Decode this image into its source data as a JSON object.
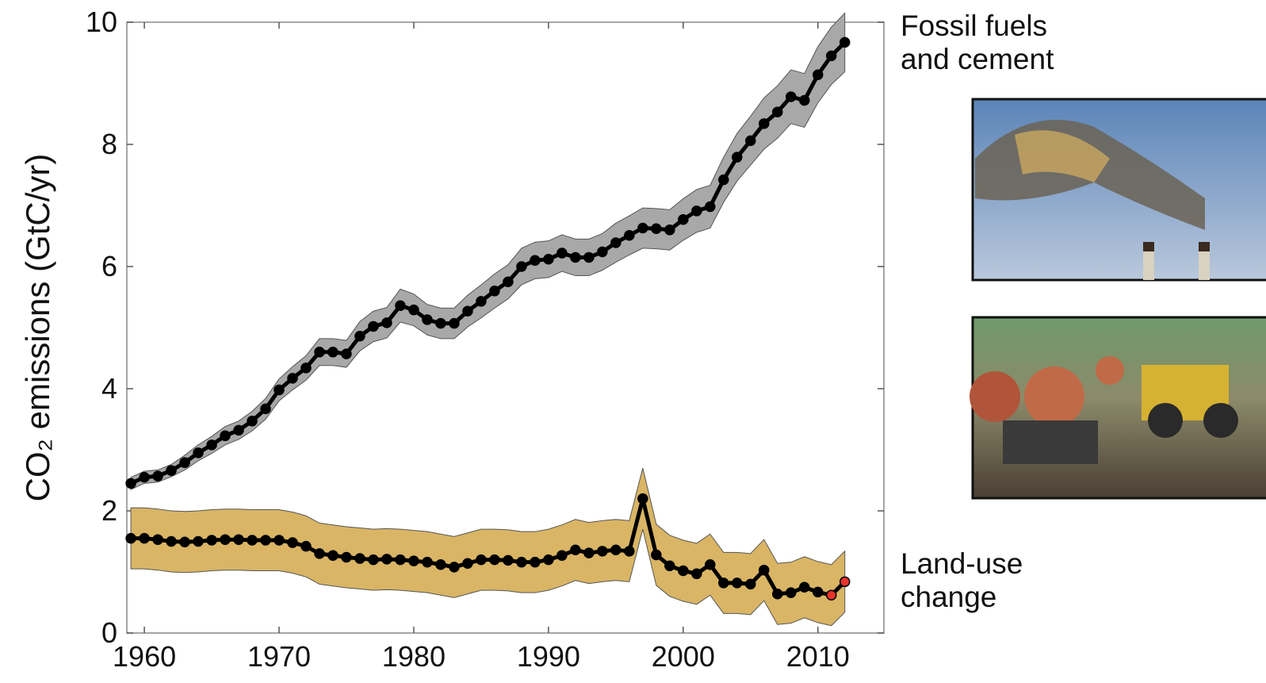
{
  "chart_data": {
    "type": "line",
    "y_label": "CO₂ emissions (GtC/yr)",
    "x": [
      1959,
      1960,
      1961,
      1962,
      1963,
      1964,
      1965,
      1966,
      1967,
      1968,
      1969,
      1970,
      1971,
      1972,
      1973,
      1974,
      1975,
      1976,
      1977,
      1978,
      1979,
      1980,
      1981,
      1982,
      1983,
      1984,
      1985,
      1986,
      1987,
      1988,
      1989,
      1990,
      1991,
      1992,
      1993,
      1994,
      1995,
      1996,
      1997,
      1998,
      1999,
      2000,
      2001,
      2002,
      2003,
      2004,
      2005,
      2006,
      2007,
      2008,
      2009,
      2010,
      2011,
      2012
    ],
    "xlim": [
      1958.7,
      2014.9
    ],
    "xticks": [
      1960,
      1970,
      1980,
      1990,
      2000,
      2010
    ],
    "ylim": [
      0,
      10
    ],
    "yticks": [
      0,
      2,
      4,
      6,
      8,
      10
    ],
    "series": [
      {
        "name": "Fossil fuels and cement",
        "color": "#000000",
        "band_color": "#a8a8a8",
        "values": [
          2.45,
          2.55,
          2.57,
          2.66,
          2.79,
          2.95,
          3.08,
          3.23,
          3.32,
          3.47,
          3.67,
          3.98,
          4.17,
          4.34,
          4.6,
          4.6,
          4.57,
          4.86,
          5.02,
          5.08,
          5.36,
          5.29,
          5.13,
          5.07,
          5.07,
          5.27,
          5.43,
          5.6,
          5.75,
          6.0,
          6.1,
          6.12,
          6.22,
          6.15,
          6.15,
          6.24,
          6.39,
          6.51,
          6.63,
          6.62,
          6.6,
          6.77,
          6.91,
          6.98,
          7.42,
          7.79,
          8.06,
          8.34,
          8.53,
          8.78,
          8.72,
          9.14,
          9.45,
          9.67
        ],
        "error": [
          0.1,
          0.1,
          0.1,
          0.1,
          0.12,
          0.13,
          0.14,
          0.15,
          0.15,
          0.16,
          0.17,
          0.18,
          0.19,
          0.2,
          0.22,
          0.22,
          0.22,
          0.24,
          0.25,
          0.25,
          0.27,
          0.26,
          0.25,
          0.25,
          0.25,
          0.26,
          0.27,
          0.28,
          0.28,
          0.3,
          0.3,
          0.3,
          0.3,
          0.3,
          0.3,
          0.3,
          0.32,
          0.32,
          0.33,
          0.33,
          0.33,
          0.34,
          0.35,
          0.35,
          0.37,
          0.39,
          0.4,
          0.42,
          0.43,
          0.44,
          0.44,
          0.46,
          0.47,
          0.48
        ]
      },
      {
        "name": "Land-use change",
        "color": "#000000",
        "band_color": "#d9b565",
        "values": [
          1.55,
          1.55,
          1.53,
          1.5,
          1.49,
          1.5,
          1.52,
          1.53,
          1.53,
          1.52,
          1.52,
          1.52,
          1.48,
          1.42,
          1.3,
          1.27,
          1.24,
          1.22,
          1.2,
          1.21,
          1.2,
          1.18,
          1.16,
          1.12,
          1.08,
          1.14,
          1.2,
          1.2,
          1.19,
          1.16,
          1.16,
          1.2,
          1.27,
          1.36,
          1.31,
          1.34,
          1.36,
          1.34,
          2.2,
          1.28,
          1.1,
          1.02,
          0.97,
          1.12,
          0.82,
          0.82,
          0.8,
          1.03,
          0.64,
          0.66,
          0.75,
          0.67,
          0.62,
          0.84
        ],
        "error": [
          0.5,
          0.5,
          0.5,
          0.5,
          0.5,
          0.5,
          0.5,
          0.5,
          0.5,
          0.5,
          0.5,
          0.5,
          0.5,
          0.5,
          0.5,
          0.5,
          0.5,
          0.5,
          0.5,
          0.5,
          0.5,
          0.5,
          0.5,
          0.5,
          0.5,
          0.5,
          0.5,
          0.5,
          0.5,
          0.5,
          0.5,
          0.5,
          0.5,
          0.5,
          0.5,
          0.5,
          0.5,
          0.5,
          0.5,
          0.5,
          0.5,
          0.5,
          0.5,
          0.5,
          0.5,
          0.5,
          0.5,
          0.5,
          0.5,
          0.5,
          0.5,
          0.5,
          0.5,
          0.5
        ],
        "marker_colors": [
          "#000000",
          "#000000",
          "#000000",
          "#000000",
          "#000000",
          "#000000",
          "#000000",
          "#000000",
          "#000000",
          "#000000",
          "#000000",
          "#000000",
          "#000000",
          "#000000",
          "#000000",
          "#000000",
          "#000000",
          "#000000",
          "#000000",
          "#000000",
          "#000000",
          "#000000",
          "#000000",
          "#000000",
          "#000000",
          "#000000",
          "#000000",
          "#000000",
          "#000000",
          "#000000",
          "#000000",
          "#000000",
          "#000000",
          "#000000",
          "#000000",
          "#000000",
          "#000000",
          "#000000",
          "#000000",
          "#000000",
          "#000000",
          "#000000",
          "#000000",
          "#000000",
          "#000000",
          "#000000",
          "#000000",
          "#000000",
          "#000000",
          "#000000",
          "#000000",
          "#000000",
          "#e8332b",
          "#e8332b"
        ]
      }
    ]
  }
}
